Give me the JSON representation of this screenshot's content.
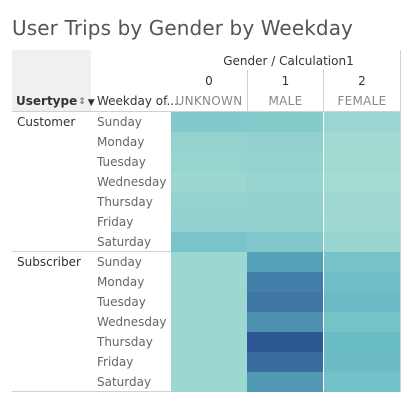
{
  "chart_data": {
    "type": "heatmap",
    "title": "User Trips by Gender by Weekday",
    "column_header": "Gender / Calculation1",
    "row_headers": [
      "Usertype",
      "Weekday of..."
    ],
    "columns": [
      {
        "code": "0",
        "label": "UNKNOWN"
      },
      {
        "code": "1",
        "label": "MALE"
      },
      {
        "code": "2",
        "label": "FEMALE"
      }
    ],
    "groups": [
      {
        "name": "Customer",
        "rows": [
          "Sunday",
          "Monday",
          "Tuesday",
          "Wednesday",
          "Thursday",
          "Friday",
          "Saturday"
        ],
        "values": [
          [
            0.3,
            0.28,
            0.16
          ],
          [
            0.2,
            0.21,
            0.11
          ],
          [
            0.18,
            0.2,
            0.11
          ],
          [
            0.14,
            0.18,
            0.1
          ],
          [
            0.2,
            0.21,
            0.12
          ],
          [
            0.21,
            0.22,
            0.12
          ],
          [
            0.36,
            0.32,
            0.17
          ]
        ]
      },
      {
        "name": "Subscriber",
        "rows": [
          "Sunday",
          "Monday",
          "Tuesday",
          "Wednesday",
          "Thursday",
          "Friday",
          "Saturday"
        ],
        "values": [
          [
            0.14,
            0.62,
            0.38
          ],
          [
            0.14,
            0.8,
            0.42
          ],
          [
            0.14,
            0.84,
            0.44
          ],
          [
            0.14,
            0.7,
            0.38
          ],
          [
            0.14,
            1.0,
            0.46
          ],
          [
            0.14,
            0.9,
            0.44
          ],
          [
            0.14,
            0.66,
            0.4
          ]
        ]
      }
    ],
    "color_low": "#b4e4d6",
    "color_mid": "#62b7c5",
    "color_high": "#2d5894"
  }
}
